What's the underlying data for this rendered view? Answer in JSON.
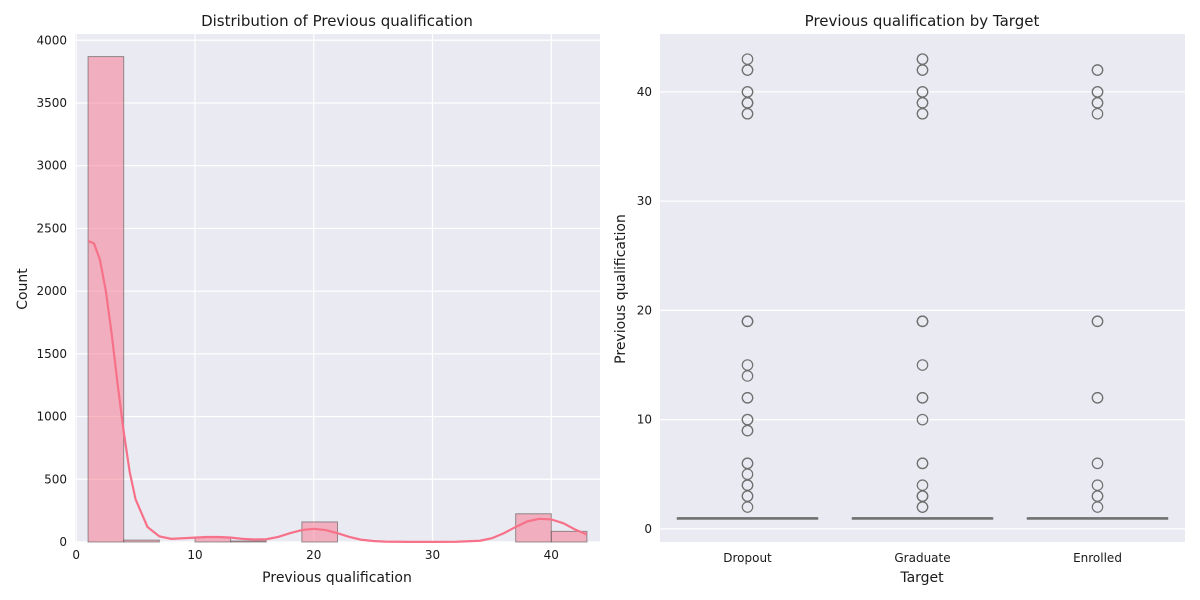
{
  "chart_data": [
    {
      "type": "bar",
      "title": "Distribution of Previous qualification",
      "xlabel": "Previous qualification",
      "ylabel": "Count",
      "xlim": [
        -0.1,
        44.1
      ],
      "ylim": [
        0,
        4050
      ],
      "xticks": [
        "0",
        "10",
        "20",
        "30",
        "40"
      ],
      "yticks": [
        "0",
        "500",
        "1000",
        "1500",
        "2000",
        "2500",
        "3000",
        "3500",
        "4000"
      ],
      "grid": true,
      "color": "#f77189",
      "bins": [
        {
          "x0": 1,
          "x1": 4,
          "count": 3870
        },
        {
          "x0": 4,
          "x1": 7,
          "count": 15
        },
        {
          "x0": 7,
          "x1": 10,
          "count": 0
        },
        {
          "x0": 10,
          "x1": 13,
          "count": 40
        },
        {
          "x0": 13,
          "x1": 16,
          "count": 8
        },
        {
          "x0": 16,
          "x1": 19,
          "count": 0
        },
        {
          "x0": 19,
          "x1": 22,
          "count": 160
        },
        {
          "x0": 22,
          "x1": 25,
          "count": 0
        },
        {
          "x0": 25,
          "x1": 28,
          "count": 0
        },
        {
          "x0": 28,
          "x1": 31,
          "count": 0
        },
        {
          "x0": 31,
          "x1": 34,
          "count": 0
        },
        {
          "x0": 34,
          "x1": 37,
          "count": 0
        },
        {
          "x0": 37,
          "x1": 40,
          "count": 225
        },
        {
          "x0": 40,
          "x1": 43,
          "count": 85
        }
      ],
      "kde": {
        "x": [
          1,
          1.5,
          2,
          2.5,
          3,
          3.5,
          4,
          4.5,
          5,
          6,
          7,
          8,
          9,
          10,
          11,
          12,
          13,
          14,
          15,
          16,
          17,
          18,
          19,
          20,
          21,
          22,
          23,
          24,
          25,
          26,
          28,
          30,
          32,
          34,
          35,
          36,
          37,
          38,
          39,
          40,
          41,
          42,
          43
        ],
        "y": [
          2400,
          2380,
          2250,
          2000,
          1650,
          1250,
          880,
          560,
          340,
          120,
          45,
          25,
          30,
          35,
          40,
          40,
          35,
          25,
          20,
          22,
          40,
          70,
          95,
          105,
          95,
          70,
          40,
          18,
          8,
          3,
          1,
          1,
          2,
          10,
          30,
          70,
          120,
          165,
          185,
          180,
          150,
          100,
          60
        ]
      }
    },
    {
      "type": "box",
      "title": "Previous qualification by Target",
      "xlabel": "Target",
      "ylabel": "Previous qualification",
      "categories": [
        "Dropout",
        "Graduate",
        "Enrolled"
      ],
      "ylim": [
        -1.2,
        45.3
      ],
      "yticks": [
        "0",
        "10",
        "20",
        "30",
        "40"
      ],
      "grid": true,
      "boxes": [
        {
          "q1": 1,
          "median": 1,
          "q3": 1,
          "whisker_low": 1,
          "whisker_high": 1,
          "outliers": [
            2,
            3,
            3,
            4,
            4,
            5,
            6,
            6,
            9,
            9,
            10,
            10,
            12,
            12,
            14,
            15,
            19,
            19,
            19,
            38,
            38,
            39,
            39,
            39,
            40,
            40,
            42,
            42,
            43
          ]
        },
        {
          "q1": 1,
          "median": 1,
          "q3": 1,
          "whisker_low": 1,
          "whisker_high": 1,
          "outliers": [
            2,
            2,
            3,
            3,
            3,
            4,
            6,
            6,
            10,
            12,
            12,
            15,
            19,
            19,
            19,
            38,
            38,
            39,
            39,
            40,
            40,
            42,
            42,
            43,
            43
          ]
        },
        {
          "q1": 1,
          "median": 1,
          "q3": 1,
          "whisker_low": 1,
          "whisker_high": 1,
          "outliers": [
            2,
            3,
            3,
            4,
            6,
            12,
            12,
            19,
            19,
            38,
            39,
            39,
            40,
            40,
            42,
            42
          ]
        }
      ]
    }
  ]
}
